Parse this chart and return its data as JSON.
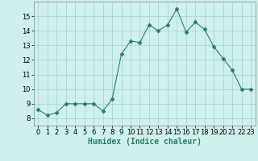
{
  "x": [
    0,
    1,
    2,
    3,
    4,
    5,
    6,
    7,
    8,
    9,
    10,
    11,
    12,
    13,
    14,
    15,
    16,
    17,
    18,
    19,
    20,
    21,
    22,
    23
  ],
  "y": [
    8.6,
    8.2,
    8.4,
    9.0,
    9.0,
    9.0,
    9.0,
    8.5,
    9.3,
    12.4,
    13.3,
    13.2,
    14.4,
    14.0,
    14.4,
    15.5,
    13.9,
    14.6,
    14.1,
    12.9,
    12.1,
    11.3,
    10.0,
    10.0
  ],
  "line_color": "#2d7d6e",
  "marker": "D",
  "marker_size": 2.5,
  "bg_color": "#cff0ec",
  "grid_color": "#a8d8d0",
  "xlabel": "Humidex (Indice chaleur)",
  "xlim": [
    -0.5,
    23.5
  ],
  "ylim": [
    7.5,
    16.0
  ],
  "yticks": [
    8,
    9,
    10,
    11,
    12,
    13,
    14,
    15
  ],
  "xticks": [
    0,
    1,
    2,
    3,
    4,
    5,
    6,
    7,
    8,
    9,
    10,
    11,
    12,
    13,
    14,
    15,
    16,
    17,
    18,
    19,
    20,
    21,
    22,
    23
  ],
  "xlabel_fontsize": 7,
  "tick_fontsize": 6
}
